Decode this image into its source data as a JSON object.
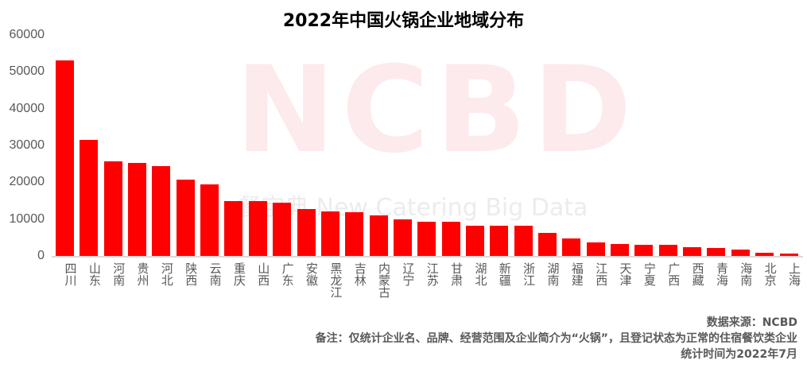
{
  "chart_data": {
    "type": "bar",
    "title": "2022年中国火锅企业地域分布",
    "xlabel": "",
    "ylabel": "",
    "ylim": [
      0,
      60000
    ],
    "yticks": [
      0,
      10000,
      20000,
      30000,
      40000,
      50000,
      60000
    ],
    "grid": false,
    "legend": null,
    "bar_color": "#ff0000",
    "categories": [
      "四川",
      "山东",
      "河南",
      "贵州",
      "河北",
      "陕西",
      "云南",
      "重庆",
      "山西",
      "广东",
      "安徽",
      "黑龙江",
      "吉林",
      "内蒙古",
      "辽宁",
      "江苏",
      "甘肃",
      "湖北",
      "新疆",
      "浙江",
      "湖南",
      "福建",
      "江西",
      "天津",
      "宁夏",
      "广西",
      "西藏",
      "青海",
      "海南",
      "北京",
      "上海"
    ],
    "values": [
      53200,
      31500,
      25600,
      25200,
      24400,
      20700,
      19400,
      14900,
      14900,
      14400,
      12700,
      12100,
      11900,
      11000,
      9900,
      9300,
      9300,
      8200,
      8200,
      8200,
      6300,
      4700,
      3700,
      3200,
      3000,
      3000,
      2400,
      2200,
      1700,
      900,
      700
    ]
  },
  "watermark": {
    "logo": "NCBD",
    "tagline": "餐宝典  New Catering Big Data"
  },
  "footer": {
    "source": "数据来源：NCBD",
    "note": "备注：仅统计企业名、品牌、经营范围及企业简介为“火锅”，且登记状态为正常的住宿餐饮类企业",
    "time": "统计时间为2022年7月"
  }
}
